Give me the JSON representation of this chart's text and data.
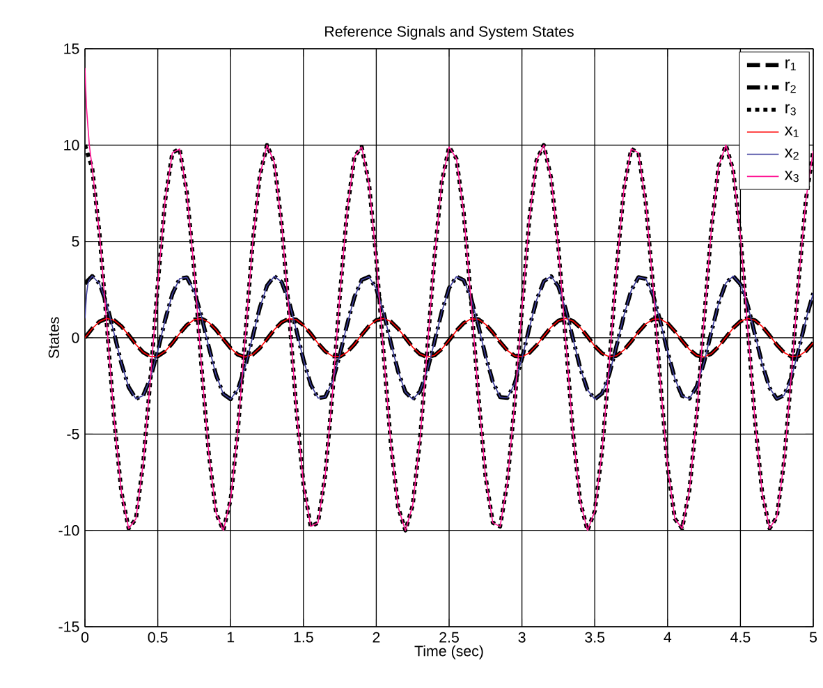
{
  "chart_data": {
    "type": "line",
    "title": "Reference Signals and System States",
    "xlabel": "Time (sec)",
    "ylabel": "States",
    "xlim": [
      0,
      5
    ],
    "xticks": [
      0,
      0.5,
      1,
      1.5,
      2,
      2.5,
      3,
      3.5,
      4,
      4.5,
      5
    ],
    "ylim": [
      -15,
      15
    ],
    "yticks": [
      -15,
      -10,
      -5,
      0,
      5,
      10,
      15
    ],
    "grid": true,
    "legend": "top right",
    "x": [
      0,
      0.05,
      0.1,
      0.15,
      0.2,
      0.25,
      0.3,
      0.35,
      0.4,
      0.45,
      0.5,
      0.55,
      0.6,
      0.65,
      0.7,
      0.75,
      0.8,
      0.85,
      0.9,
      0.95,
      1,
      1.05,
      1.1,
      1.15,
      1.2,
      1.25,
      1.3,
      1.35,
      1.4,
      1.45,
      1.5,
      1.55,
      1.6,
      1.65,
      1.7,
      1.75,
      1.8,
      1.85,
      1.9,
      1.95,
      2,
      2.05,
      2.1,
      2.15,
      2.2,
      2.25,
      2.3,
      2.35,
      2.4,
      2.45,
      2.5,
      2.55,
      2.6,
      2.65,
      2.7,
      2.75,
      2.8,
      2.85,
      2.9,
      2.95,
      3,
      3.05,
      3.1,
      3.15,
      3.2,
      3.25,
      3.3,
      3.35,
      3.4,
      3.45,
      3.5,
      3.55,
      3.6,
      3.65,
      3.7,
      3.75,
      3.8,
      3.85,
      3.9,
      3.95,
      4,
      4.05,
      4.1,
      4.15,
      4.2,
      4.25,
      4.3,
      4.35,
      4.4,
      4.45,
      4.5,
      4.55,
      4.6,
      4.65,
      4.7,
      4.75,
      4.8,
      4.85,
      4.9,
      4.95,
      5
    ],
    "series": [
      {
        "name": "r$_{1}$",
        "color": "#000000",
        "line_style": "dashed",
        "values": [
          0,
          0.48,
          0.84,
          1.0,
          0.91,
          0.6,
          0.14,
          -0.35,
          -0.76,
          -0.98,
          -0.96,
          -0.71,
          -0.28,
          0.22,
          0.66,
          0.94,
          0.99,
          0.8,
          0.41,
          -0.08,
          -0.54,
          -0.88,
          -1.0,
          -0.88,
          -0.54,
          -0.07,
          0.42,
          0.8,
          0.99,
          0.94,
          0.65,
          0.21,
          -0.29,
          -0.71,
          -0.96,
          -0.98,
          -0.75,
          -0.34,
          0.15,
          0.61,
          0.91,
          1.0,
          0.84,
          0.47,
          -0.01,
          -0.49,
          -0.85,
          -1.0,
          -0.91,
          -0.59,
          -0.13,
          0.36,
          0.76,
          0.98,
          0.96,
          0.7,
          0.27,
          -0.22,
          -0.66,
          -0.94,
          -0.99,
          -0.79,
          -0.4,
          0.08,
          0.55,
          0.88,
          1.0,
          0.87,
          0.53,
          0.06,
          -0.43,
          -0.81,
          -0.99,
          -0.93,
          -0.64,
          -0.2,
          0.3,
          0.72,
          0.96,
          0.97,
          0.75,
          0.33,
          -0.16,
          -0.61,
          -0.92,
          -1.0,
          -0.83,
          -0.46,
          0.02,
          0.5,
          0.85,
          1.0,
          0.9,
          0.58,
          0.12,
          -0.37,
          -0.77,
          -0.98,
          -0.95,
          -0.69,
          -0.26
        ]
      },
      {
        "name": "r$_{2}$",
        "color": "#000000",
        "line_style": "dashdot",
        "values": [
          2.81,
          3.2,
          2.81,
          1.73,
          0.23,
          -1.33,
          -2.56,
          -3.17,
          -3.0,
          -2.09,
          -0.68,
          0.91,
          2.27,
          3.07,
          3.13,
          2.41,
          1.11,
          -0.47,
          -1.93,
          -2.92,
          -3.19,
          -2.68,
          -1.52,
          0.01,
          1.55,
          2.7,
          3.19,
          2.9,
          1.9,
          0.44,
          -1.14,
          -2.43,
          -3.13,
          -3.07,
          -2.26,
          -0.88,
          0.7,
          2.11,
          3.0,
          3.16,
          2.55,
          1.31,
          -0.26,
          -1.75,
          -2.82,
          -3.2,
          -2.79,
          -1.71,
          -0.2,
          1.36,
          2.58,
          3.17,
          2.99,
          2.07,
          0.65,
          -0.93,
          -2.29,
          -3.08,
          -3.12,
          -2.39,
          -1.08,
          0.49,
          1.95,
          2.93,
          3.19,
          2.67,
          1.5,
          -0.04,
          -1.57,
          -2.71,
          -3.19,
          -2.89,
          -1.89,
          -0.41,
          1.16,
          2.45,
          3.14,
          3.06,
          2.23,
          0.85,
          -0.73,
          -2.13,
          -3.02,
          -3.16,
          -2.53,
          -1.28,
          0.28,
          1.78,
          2.84,
          3.2,
          2.78,
          1.68,
          0.17,
          -1.38,
          -2.6,
          -3.17,
          -2.98,
          -2.06,
          -0.62,
          0.96,
          2.31
        ]
      },
      {
        "name": "r$_{3}$",
        "color": "#000000",
        "line_style": "dotted",
        "values": [
          10,
          8.8,
          5.4,
          0.7,
          -4.2,
          -8,
          -9.9,
          -9.4,
          -6.5,
          -2.1,
          2.8,
          7.1,
          9.6,
          9.8,
          7.5,
          3.5,
          -1.5,
          -6,
          -9.1,
          -10,
          -8.4,
          -4.8,
          0,
          4.8,
          8.4,
          10,
          9.1,
          5.9,
          1.4,
          -3.6,
          -7.6,
          -9.8,
          -9.6,
          -7.1,
          -2.8,
          2.2,
          6.6,
          9.4,
          9.9,
          8,
          4.1,
          -0.8,
          -5.5,
          -8.8,
          -10,
          -8.7,
          -5.3,
          -0.6,
          4.2,
          8.1,
          9.9,
          9.3,
          6.5,
          2,
          -2.9,
          -7.2,
          -9.6,
          -9.8,
          -7.5,
          -3.4,
          1.5,
          6.1,
          9.2,
          10,
          8.3,
          4.7,
          -0.1,
          -4.9,
          -8.5,
          -10,
          -9,
          -5.9,
          -1.3,
          3.6,
          7.7,
          9.8,
          9.6,
          7,
          2.7,
          -2.3,
          -6.7,
          -9.4,
          -9.9,
          -7.9,
          -4,
          0.9,
          5.6,
          8.9,
          10,
          8.7,
          5.3,
          0.5,
          -4.3,
          -8.1,
          -9.9,
          -9.3,
          -6.4,
          -1.9,
          3,
          7.2,
          9.7
        ]
      },
      {
        "name": "x$_{1}$",
        "color": "#ff0000",
        "line_style": "solid",
        "values": [
          0,
          0.48,
          0.84,
          1.0,
          0.91,
          0.6,
          0.14,
          -0.35,
          -0.76,
          -0.98,
          -0.96,
          -0.71,
          -0.28,
          0.22,
          0.66,
          0.94,
          0.99,
          0.8,
          0.41,
          -0.08,
          -0.54,
          -0.88,
          -1.0,
          -0.88,
          -0.54,
          -0.07,
          0.42,
          0.8,
          0.99,
          0.94,
          0.65,
          0.21,
          -0.29,
          -0.71,
          -0.96,
          -0.98,
          -0.75,
          -0.34,
          0.15,
          0.61,
          0.91,
          1.0,
          0.84,
          0.47,
          -0.01,
          -0.49,
          -0.85,
          -1.0,
          -0.91,
          -0.59,
          -0.13,
          0.36,
          0.76,
          0.98,
          0.96,
          0.7,
          0.27,
          -0.22,
          -0.66,
          -0.94,
          -0.99,
          -0.79,
          -0.4,
          0.08,
          0.55,
          0.88,
          1.0,
          0.87,
          0.53,
          0.06,
          -0.43,
          -0.81,
          -0.99,
          -0.93,
          -0.64,
          -0.2,
          0.3,
          0.72,
          0.96,
          0.97,
          0.75,
          0.33,
          -0.16,
          -0.61,
          -0.92,
          -1.0,
          -0.83,
          -0.46,
          0.02,
          0.5,
          0.85,
          1.0,
          0.9,
          0.58,
          0.12,
          -0.37,
          -0.77,
          -0.98,
          -0.95,
          -0.69,
          -0.26
        ]
      },
      {
        "name": "x$_{2}$",
        "color": "#3c3c9c",
        "line_style": "solid",
        "x": [
          0,
          0.01,
          0.02,
          0.03,
          0.05,
          0.1,
          0.15,
          0.2,
          0.25,
          0.3,
          0.35,
          0.4,
          0.45,
          0.5,
          0.55,
          0.6,
          0.65,
          0.7,
          0.75,
          0.8,
          0.85,
          0.9,
          0.95,
          1,
          1.05,
          1.1,
          1.15,
          1.2,
          1.25,
          1.3,
          1.35,
          1.4,
          1.45,
          1.5,
          1.55,
          1.6,
          1.65,
          1.7,
          1.75,
          1.8,
          1.85,
          1.9,
          1.95,
          2,
          2.05,
          2.1,
          2.15,
          2.2,
          2.25,
          2.3,
          2.35,
          2.4,
          2.45,
          2.5,
          2.55,
          2.6,
          2.65,
          2.7,
          2.75,
          2.8,
          2.85,
          2.9,
          2.95,
          3,
          3.05,
          3.1,
          3.15,
          3.2,
          3.25,
          3.3,
          3.35,
          3.4,
          3.45,
          3.5,
          3.55,
          3.6,
          3.65,
          3.7,
          3.75,
          3.8,
          3.85,
          3.9,
          3.95,
          4,
          4.05,
          4.1,
          4.15,
          4.2,
          4.25,
          4.3,
          4.35,
          4.4,
          4.45,
          4.5,
          4.55,
          4.6,
          4.65,
          4.7,
          4.75,
          4.8,
          4.85,
          4.9,
          4.95,
          5
        ],
        "values": [
          1,
          2.2,
          2.8,
          3.0,
          3.2,
          2.81,
          1.73,
          0.23,
          -1.33,
          -2.56,
          -3.17,
          -3.0,
          -2.09,
          -0.68,
          0.91,
          2.27,
          3.07,
          3.13,
          2.41,
          1.11,
          -0.47,
          -1.93,
          -2.92,
          -3.19,
          -2.68,
          -1.52,
          0.01,
          1.55,
          2.7,
          3.19,
          2.9,
          1.9,
          0.44,
          -1.14,
          -2.43,
          -3.13,
          -3.07,
          -2.26,
          -0.88,
          0.7,
          2.11,
          3.0,
          3.16,
          2.55,
          1.31,
          -0.26,
          -1.75,
          -2.82,
          -3.2,
          -2.79,
          -1.71,
          -0.2,
          1.36,
          2.58,
          3.17,
          2.99,
          2.07,
          0.65,
          -0.93,
          -2.29,
          -3.08,
          -3.12,
          -2.39,
          -1.08,
          0.49,
          1.95,
          2.93,
          3.19,
          2.67,
          1.5,
          -0.04,
          -1.57,
          -2.71,
          -3.19,
          -2.89,
          -1.89,
          -0.41,
          1.16,
          2.45,
          3.14,
          3.06,
          2.23,
          0.85,
          -0.73,
          -2.13,
          -3.02,
          -3.16,
          -2.53,
          -1.28,
          0.28,
          1.78,
          2.84,
          3.2,
          2.78,
          1.68,
          0.17,
          -1.38,
          -2.6,
          -3.17,
          -2.98,
          -2.06,
          -0.62,
          0.96,
          2.31
        ]
      },
      {
        "name": "x$_{3}$",
        "color": "#ff1493",
        "line_style": "solid",
        "x": [
          0,
          0.01,
          0.02,
          0.03,
          0.05,
          0.1,
          0.15,
          0.2,
          0.25,
          0.3,
          0.35,
          0.4,
          0.45,
          0.5,
          0.55,
          0.6,
          0.65,
          0.7,
          0.75,
          0.8,
          0.85,
          0.9,
          0.95,
          1,
          1.05,
          1.1,
          1.15,
          1.2,
          1.25,
          1.3,
          1.35,
          1.4,
          1.45,
          1.5,
          1.55,
          1.6,
          1.65,
          1.7,
          1.75,
          1.8,
          1.85,
          1.9,
          1.95,
          2,
          2.05,
          2.1,
          2.15,
          2.2,
          2.25,
          2.3,
          2.35,
          2.4,
          2.45,
          2.5,
          2.55,
          2.6,
          2.65,
          2.7,
          2.75,
          2.8,
          2.85,
          2.9,
          2.95,
          3,
          3.05,
          3.1,
          3.15,
          3.2,
          3.25,
          3.3,
          3.35,
          3.4,
          3.45,
          3.5,
          3.55,
          3.6,
          3.65,
          3.7,
          3.75,
          3.8,
          3.85,
          3.9,
          3.95,
          4,
          4.05,
          4.1,
          4.15,
          4.2,
          4.25,
          4.3,
          4.35,
          4.4,
          4.45,
          4.5,
          4.55,
          4.6,
          4.65,
          4.7,
          4.75,
          4.8,
          4.85,
          4.9,
          4.95,
          5
        ],
        "values": [
          14,
          12,
          11,
          10,
          8.8,
          5.4,
          0.7,
          -4.2,
          -8,
          -9.9,
          -9.4,
          -6.5,
          -2.1,
          2.8,
          7.1,
          9.6,
          9.8,
          7.5,
          3.5,
          -1.5,
          -6,
          -9.1,
          -10,
          -8.4,
          -4.8,
          0,
          4.8,
          8.4,
          10,
          9.1,
          5.9,
          1.4,
          -3.6,
          -7.6,
          -9.8,
          -9.6,
          -7.1,
          -2.8,
          2.2,
          6.6,
          9.4,
          9.9,
          8,
          4.1,
          -0.8,
          -5.5,
          -8.8,
          -10,
          -8.7,
          -5.3,
          -0.6,
          4.2,
          8.1,
          9.9,
          9.3,
          6.5,
          2,
          -2.9,
          -7.2,
          -9.6,
          -9.8,
          -7.5,
          -3.4,
          1.5,
          6.1,
          9.2,
          10,
          8.3,
          4.7,
          -0.1,
          -4.9,
          -8.5,
          -10,
          -9,
          -5.9,
          -1.3,
          3.6,
          7.7,
          9.8,
          9.6,
          7,
          2.7,
          -2.3,
          -6.7,
          -9.4,
          -9.9,
          -7.9,
          -4,
          0.9,
          5.6,
          8.9,
          10,
          8.7,
          5.3,
          0.5,
          -4.3,
          -8.1,
          -9.9,
          -9.3,
          -6.4,
          -1.9,
          3,
          7.2,
          9.7
        ]
      }
    ]
  }
}
